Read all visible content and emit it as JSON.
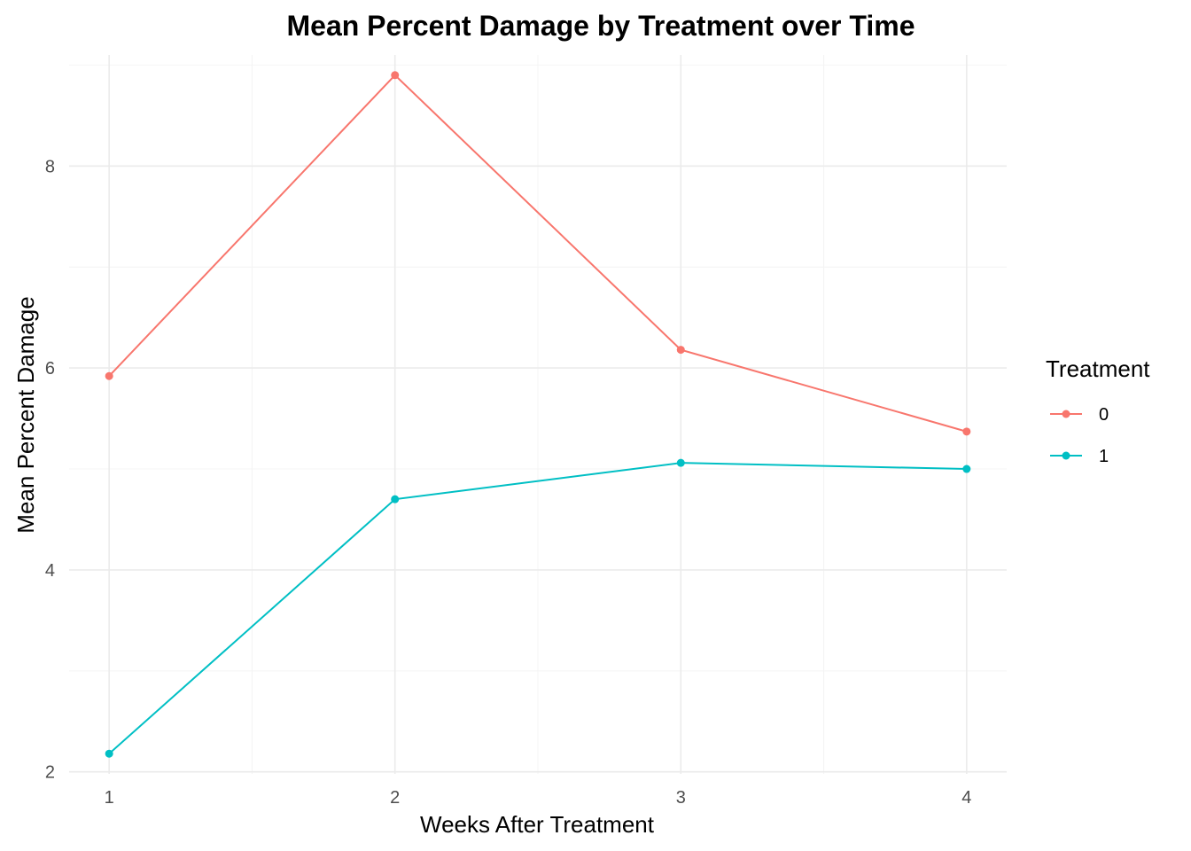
{
  "chart_data": {
    "type": "line",
    "title": "Mean Percent Damage by Treatment over Time",
    "xlabel": "Weeks After Treatment",
    "ylabel": "Mean Percent Damage",
    "x": [
      1,
      2,
      3,
      4
    ],
    "xticks": [
      "1",
      "2",
      "3",
      "4"
    ],
    "yticks": [
      "2",
      "4",
      "6",
      "8"
    ],
    "xlim": [
      0.86,
      4.14
    ],
    "ylim": [
      1.98,
      9.1
    ],
    "grid": true,
    "legend_title": "Treatment",
    "legend_position": "right",
    "series": [
      {
        "name": "0",
        "color": "#F8766D",
        "values": [
          5.92,
          8.9,
          6.18,
          5.37
        ]
      },
      {
        "name": "1",
        "color": "#00BFC4",
        "values": [
          2.18,
          4.7,
          5.06,
          5.0
        ]
      }
    ]
  }
}
